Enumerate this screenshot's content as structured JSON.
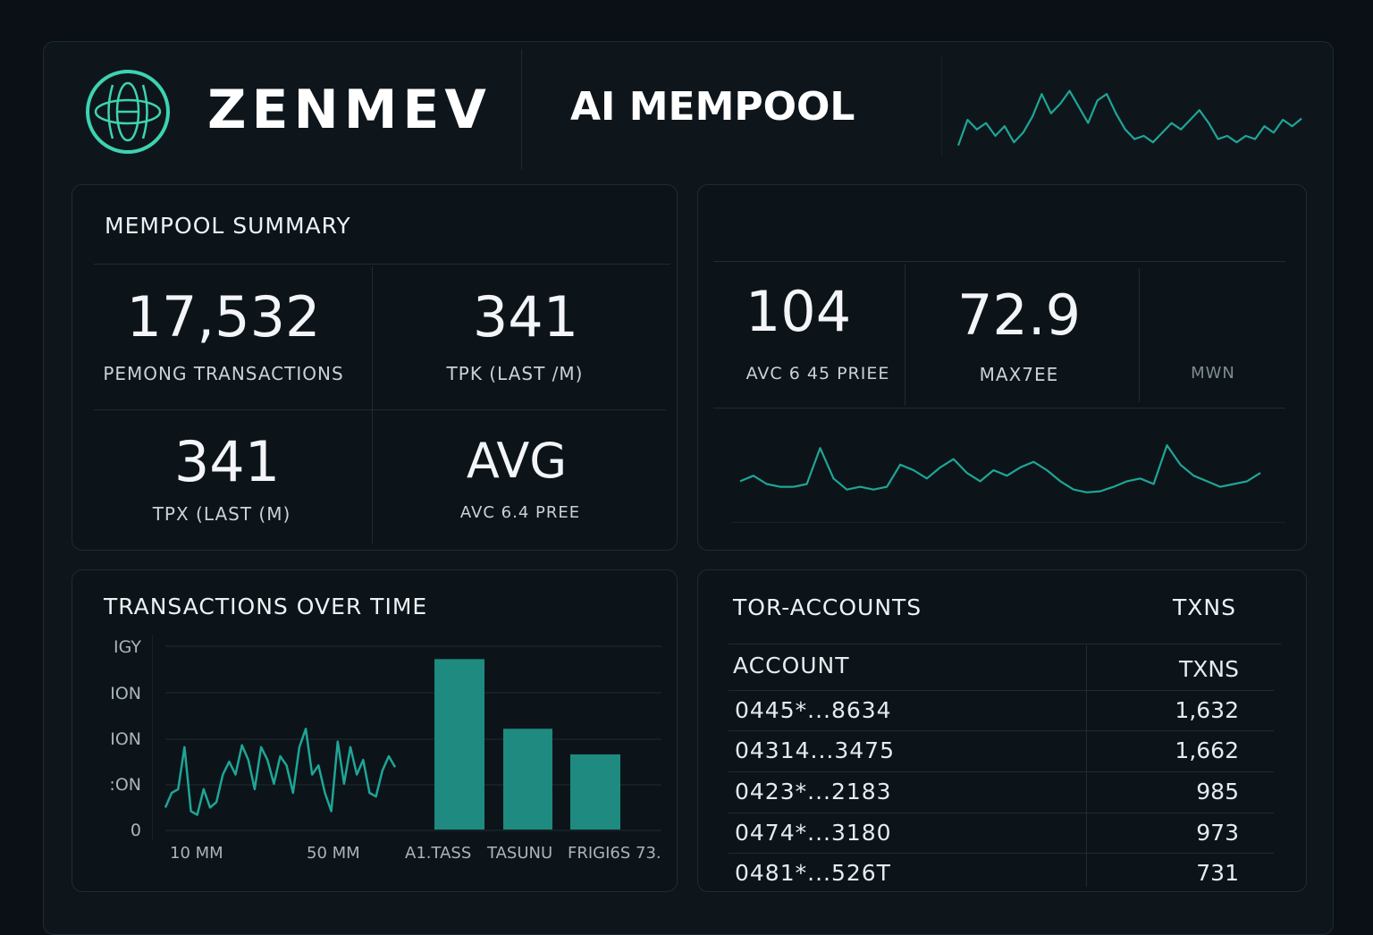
{
  "header": {
    "brand": "ZENMEV",
    "title": "AI MEMPOOL",
    "logo_icon": "globe-ring-icon",
    "sparkline": [
      0.1,
      0.5,
      0.35,
      0.45,
      0.25,
      0.4,
      0.15,
      0.3,
      0.55,
      0.9,
      0.6,
      0.75,
      0.95,
      0.7,
      0.45,
      0.8,
      0.9,
      0.6,
      0.35,
      0.2,
      0.25,
      0.15,
      0.3,
      0.45,
      0.35,
      0.5,
      0.65,
      0.45,
      0.2,
      0.25,
      0.15,
      0.25,
      0.2,
      0.4,
      0.3,
      0.5,
      0.4,
      0.52
    ]
  },
  "summary": {
    "title": "MEMPOOL SUMMARY",
    "stats": [
      {
        "value": "17,532",
        "label": "PEMONG TRANSACTIONS"
      },
      {
        "value": "341",
        "label": "TPK (LAST /M)"
      },
      {
        "value": "341",
        "label": "TPX (LAST (M)"
      },
      {
        "value": "AVG",
        "label": "AVC 6.4 PREE"
      }
    ]
  },
  "fees": {
    "stats": [
      {
        "value": "104",
        "label": "AVC 6 45 PRIEE"
      },
      {
        "value": "72.9",
        "label": "MAX7EE"
      },
      {
        "value": "",
        "label": "MWN"
      }
    ],
    "sparkline": [
      0.3,
      0.4,
      0.25,
      0.2,
      0.2,
      0.25,
      0.9,
      0.35,
      0.15,
      0.2,
      0.15,
      0.2,
      0.6,
      0.5,
      0.35,
      0.55,
      0.7,
      0.45,
      0.3,
      0.5,
      0.4,
      0.55,
      0.65,
      0.5,
      0.3,
      0.15,
      0.1,
      0.12,
      0.2,
      0.3,
      0.35,
      0.25,
      0.95,
      0.6,
      0.4,
      0.3,
      0.2,
      0.25,
      0.3,
      0.45
    ]
  },
  "chart_data": {
    "type": "bar",
    "title": "TRANSACTIONS OVER TIME",
    "ytick_labels": [
      "IGY",
      "ION",
      "ION",
      ":ON",
      "0"
    ],
    "ylim": [
      0,
      1
    ],
    "grid": true,
    "line": {
      "x_labels": [
        "10 MM",
        "50 MM"
      ],
      "values": [
        0.12,
        0.2,
        0.22,
        0.45,
        0.1,
        0.08,
        0.22,
        0.12,
        0.15,
        0.3,
        0.37,
        0.3,
        0.46,
        0.38,
        0.22,
        0.45,
        0.38,
        0.25,
        0.4,
        0.35,
        0.2,
        0.45,
        0.55,
        0.3,
        0.35,
        0.2,
        0.1,
        0.48,
        0.25,
        0.45,
        0.3,
        0.38,
        0.2,
        0.18,
        0.32,
        0.4,
        0.34
      ]
    },
    "bars": {
      "categories": [
        "A1.TASS",
        "TASUNU",
        "FRIGI6S 73."
      ],
      "values": [
        0.93,
        0.55,
        0.41
      ]
    },
    "color": "#1e8a80"
  },
  "accounts": {
    "title": "TOR-ACCOUNTS",
    "title_right": "TXNS",
    "col_account": "ACCOUNT",
    "col_txns": "TXNS",
    "rows": [
      {
        "account": "0445*...8634",
        "txns": "1,632"
      },
      {
        "account": "04314...3475",
        "txns": "1,662"
      },
      {
        "account": "0423*...2183",
        "txns": "985"
      },
      {
        "account": "0474*...3180",
        "txns": "973"
      },
      {
        "account": "0481*...526T",
        "txns": "731"
      }
    ]
  },
  "colors": {
    "accent": "#2fc4a6",
    "line": "#1fa596",
    "bg": "#0a1015"
  }
}
